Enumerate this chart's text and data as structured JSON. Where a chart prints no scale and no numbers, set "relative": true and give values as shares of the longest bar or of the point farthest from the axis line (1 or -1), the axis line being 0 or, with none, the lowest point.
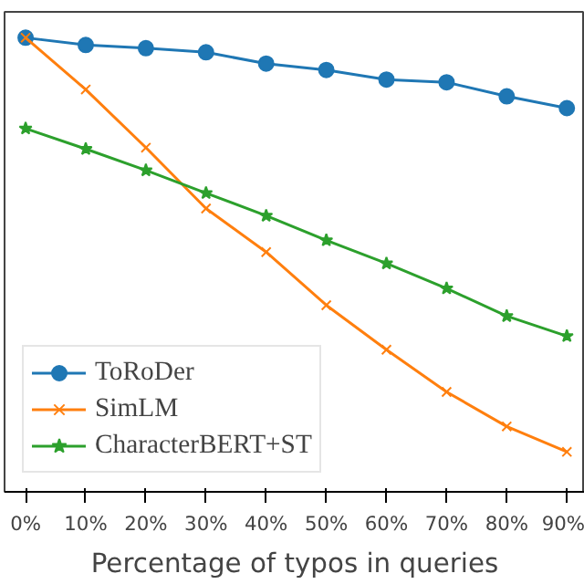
{
  "chart_data": {
    "type": "line",
    "relative": true,
    "xlabel": "Percentage of typos in queries",
    "categories": [
      "0%",
      "10%",
      "20%",
      "30%",
      "40%",
      "50%",
      "60%",
      "70%",
      "80%",
      "90%"
    ],
    "series": [
      {
        "name": "ToRoDer",
        "color": "#1f77b4",
        "marker": "circle",
        "values": [
          1,
          0.984,
          0.977,
          0.968,
          0.943,
          0.929,
          0.908,
          0.902,
          0.871,
          0.845
        ]
      },
      {
        "name": "SimLM",
        "color": "#ff7f0e",
        "marker": "cross",
        "values": [
          1,
          0.886,
          0.758,
          0.624,
          0.528,
          0.411,
          0.313,
          0.22,
          0.144,
          0.088
        ]
      },
      {
        "name": "CharacterBERT+ST",
        "color": "#2ca02c",
        "marker": "star",
        "values": [
          0.8,
          0.755,
          0.708,
          0.658,
          0.608,
          0.554,
          0.503,
          0.448,
          0.387,
          0.343
        ]
      }
    ],
    "legend": "bottom left",
    "grid": false
  }
}
